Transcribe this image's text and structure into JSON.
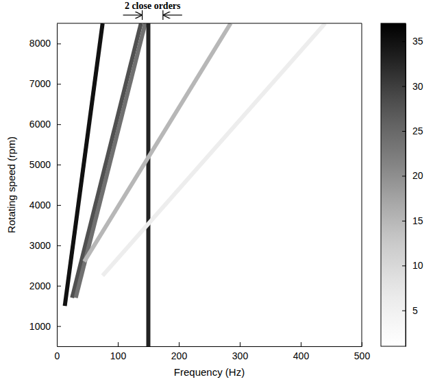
{
  "chart_data": {
    "type": "line",
    "annotations": [
      {
        "text": "2 close orders",
        "x": [
          140,
          174
        ]
      }
    ],
    "x_label": "Frequency (Hz)",
    "y_label": "Rotating speed (rpm)",
    "xlim": [
      0,
      500
    ],
    "xticks": [
      0,
      100,
      200,
      300,
      400,
      500
    ],
    "ylim": [
      500,
      8500
    ],
    "yticks": [
      1000,
      2000,
      3000,
      4000,
      5000,
      6000,
      7000,
      8000
    ],
    "colorbar": {
      "range": [
        1,
        37
      ],
      "ticks": [
        5,
        10,
        15,
        20,
        25,
        30,
        35
      ]
    },
    "series": [
      {
        "x": [
          13,
          75
        ],
        "values": [
          1500,
          8500
        ],
        "intensity": 35
      },
      {
        "x": [
          25,
          138
        ],
        "values": [
          1700,
          8500
        ],
        "intensity": 28
      },
      {
        "x": [
          31,
          145
        ],
        "values": [
          1700,
          8500
        ],
        "intensity": 24
      },
      {
        "x": [
          150,
          150
        ],
        "values": [
          500,
          8500
        ],
        "intensity": 33
      },
      {
        "x": [
          45,
          285
        ],
        "values": [
          2600,
          8500
        ],
        "intensity": 15
      },
      {
        "x": [
          75,
          440
        ],
        "values": [
          2250,
          8500
        ],
        "intensity": 6
      }
    ]
  }
}
